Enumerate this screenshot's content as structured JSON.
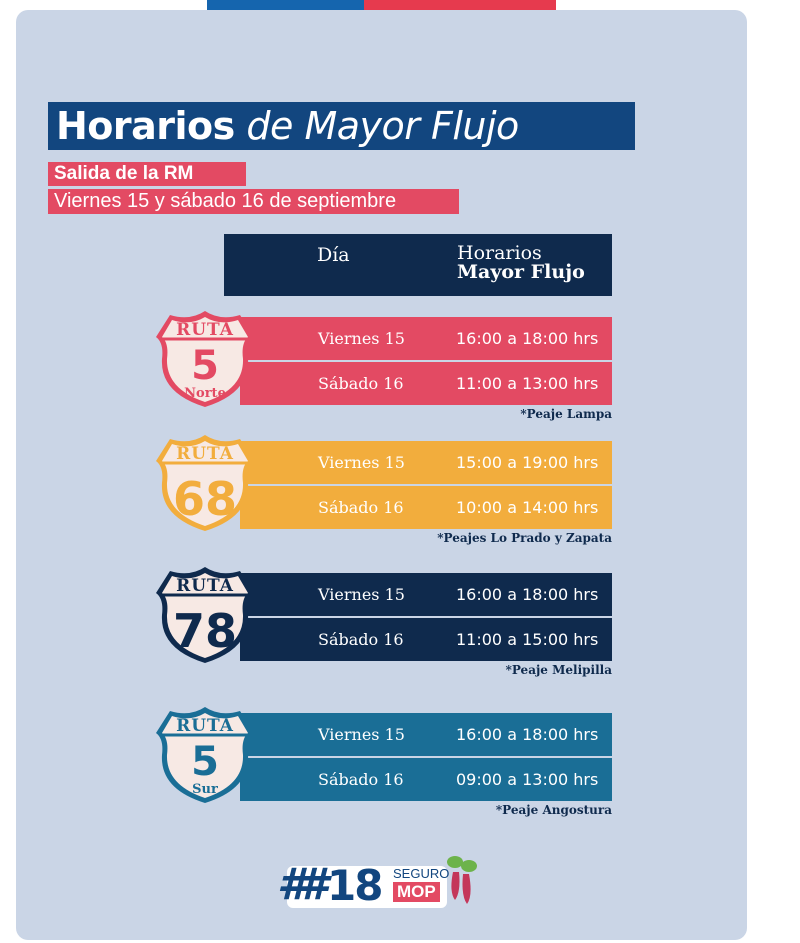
{
  "flag": {
    "blue": "#1565ae",
    "red": "#e63a4e"
  },
  "title": {
    "part1": "Horarios",
    "part2": "de Mayor Flujo"
  },
  "subtitle": {
    "line1": "Salida de la RM",
    "line2": "Viernes 15 y sábado 16 de septiembre"
  },
  "table_header": {
    "day": "Día",
    "hours_line1": "Horarios",
    "hours_line2": "Mayor Flujo"
  },
  "routes": [
    {
      "label": "RUTA",
      "number": "5",
      "suffix": "Norte",
      "color": "#e34a63",
      "rows": [
        {
          "day": "Viernes 15",
          "time": "16:00 a 18:00 hrs"
        },
        {
          "day": "Sábado 16",
          "time": "11:00 a 13:00 hrs"
        }
      ],
      "note": "*Peaje Lampa"
    },
    {
      "label": "RUTA",
      "number": "68",
      "suffix": "",
      "color": "#f2ad3d",
      "rows": [
        {
          "day": "Viernes 15",
          "time": "15:00 a 19:00 hrs"
        },
        {
          "day": "Sábado 16",
          "time": "10:00 a 14:00 hrs"
        }
      ],
      "note": "*Peajes Lo Prado y Zapata"
    },
    {
      "label": "RUTA",
      "number": "78",
      "suffix": "",
      "color": "#0f2a4d",
      "rows": [
        {
          "day": "Viernes 15",
          "time": "16:00 a 18:00 hrs"
        },
        {
          "day": "Sábado 16",
          "time": "11:00 a 15:00 hrs"
        }
      ],
      "note": "*Peaje Melipilla"
    },
    {
      "label": "RUTA",
      "number": "5",
      "suffix": "Sur",
      "color": "#1a6e96",
      "rows": [
        {
          "day": "Viernes 15",
          "time": "16:00 a 18:00 hrs"
        },
        {
          "day": "Sábado 16",
          "time": "09:00 a 13:00 hrs"
        }
      ],
      "note": "*Peaje Angostura"
    }
  ],
  "logo": {
    "hash": "##",
    "number": "18",
    "seguro": "SEGURO",
    "mop": "MOP"
  }
}
